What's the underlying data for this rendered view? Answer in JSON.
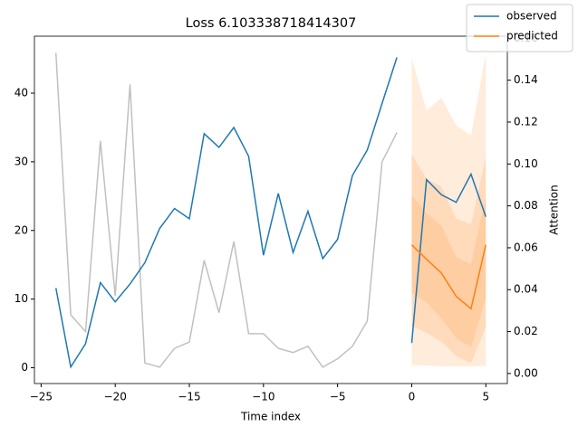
{
  "chart_data": {
    "type": "line",
    "title": "Loss 6.103338718414307",
    "xlabel": "Time index",
    "y2label": "Attention",
    "xlim": [
      -25.45,
      6.45
    ],
    "xticks": [
      {
        "value": -25,
        "label": "−25"
      },
      {
        "value": -20,
        "label": "−20"
      },
      {
        "value": -15,
        "label": "−15"
      },
      {
        "value": -10,
        "label": "−10"
      },
      {
        "value": -5,
        "label": "−5"
      },
      0,
      5
    ],
    "ylim": [
      -2.3,
      48.3
    ],
    "yticks": [
      0,
      10,
      20,
      30,
      40
    ],
    "y2lim": [
      -0.0048,
      0.161
    ],
    "y2ticks": [
      {
        "value": 0,
        "label": "0.00"
      },
      {
        "value": 0.02,
        "label": "0.02"
      },
      {
        "value": 0.04,
        "label": "0.04"
      },
      {
        "value": 0.06,
        "label": "0.06"
      },
      {
        "value": 0.08,
        "label": "0.08"
      },
      {
        "value": 0.1,
        "label": "0.10"
      },
      {
        "value": 0.12,
        "label": "0.12"
      },
      {
        "value": 0.14,
        "label": "0.14"
      },
      {
        "value": 0.16,
        "label": "0.16"
      }
    ],
    "legend": "upper right",
    "bands": [
      {
        "color": "#ff7f0e",
        "opacity": 0.15,
        "x": [
          0,
          1,
          2,
          3,
          4,
          5
        ],
        "lower": [
          0.4,
          0.3,
          0.2,
          0.2,
          0.2,
          0.3
        ],
        "upper": [
          45.1,
          37.5,
          39.3,
          35.3,
          33.8,
          45.7
        ]
      },
      {
        "color": "#ff7f0e",
        "opacity": 0.15,
        "x": [
          0,
          1,
          2,
          3,
          4,
          5
        ],
        "lower": [
          6.1,
          5.1,
          3.8,
          1.7,
          0.7,
          5.9
        ],
        "upper": [
          31.1,
          27.5,
          26.4,
          21.7,
          20.9,
          30.7
        ]
      },
      {
        "color": "#ff7f0e",
        "opacity": 0.15,
        "x": [
          0,
          1,
          2,
          3,
          4,
          5
        ],
        "lower": [
          10.9,
          9.5,
          7.2,
          4.3,
          3.0,
          10.1
        ],
        "upper": [
          25.1,
          22.5,
          20.7,
          16.1,
          15.1,
          24.9
        ]
      }
    ],
    "series": [
      {
        "name": "observed",
        "color": "#1f77b4",
        "x": [
          -24,
          -23,
          -22,
          -21,
          -20,
          -19,
          -18,
          -17,
          -16,
          -15,
          -14,
          -13,
          -12,
          -11,
          -10,
          -9,
          -8,
          -7,
          -6,
          -5,
          -4,
          -3,
          -2,
          -1
        ],
        "values": [
          11.6,
          0.1,
          3.5,
          12.4,
          9.6,
          12.2,
          15.3,
          20.3,
          23.2,
          21.7,
          34.1,
          32.1,
          35.0,
          30.8,
          16.4,
          25.4,
          16.8,
          22.8,
          15.9,
          18.7,
          28.0,
          31.7,
          38.5,
          45.2
        ]
      },
      {
        "name": "observed",
        "color": "#1f77b4",
        "x": [
          0,
          1,
          2,
          3,
          4,
          5
        ],
        "values": [
          3.6,
          27.4,
          25.2,
          24.1,
          28.2,
          22.0
        ]
      },
      {
        "name": "predicted",
        "color": "#ff7f0e",
        "x": [
          0,
          1,
          2,
          3,
          4,
          5
        ],
        "values": [
          17.9,
          15.8,
          13.8,
          10.4,
          8.6,
          17.9
        ]
      },
      {
        "color": "#c0c0c0",
        "axis": "y2",
        "x": [
          -24,
          -23,
          -22,
          -21,
          -20,
          -19,
          -18,
          -17,
          -16,
          -15,
          -14,
          -13,
          -12,
          -11,
          -10,
          -9,
          -8,
          -7,
          -6,
          -5,
          -4,
          -3,
          -2,
          -1
        ],
        "values": [
          0.153,
          0.028,
          0.02,
          0.111,
          0.037,
          0.138,
          0.005,
          0.003,
          0.012,
          0.015,
          0.054,
          0.029,
          0.063,
          0.019,
          0.019,
          0.012,
          0.01,
          0.013,
          0.003,
          0.007,
          0.013,
          0.025,
          0.101,
          0.115
        ]
      }
    ]
  }
}
